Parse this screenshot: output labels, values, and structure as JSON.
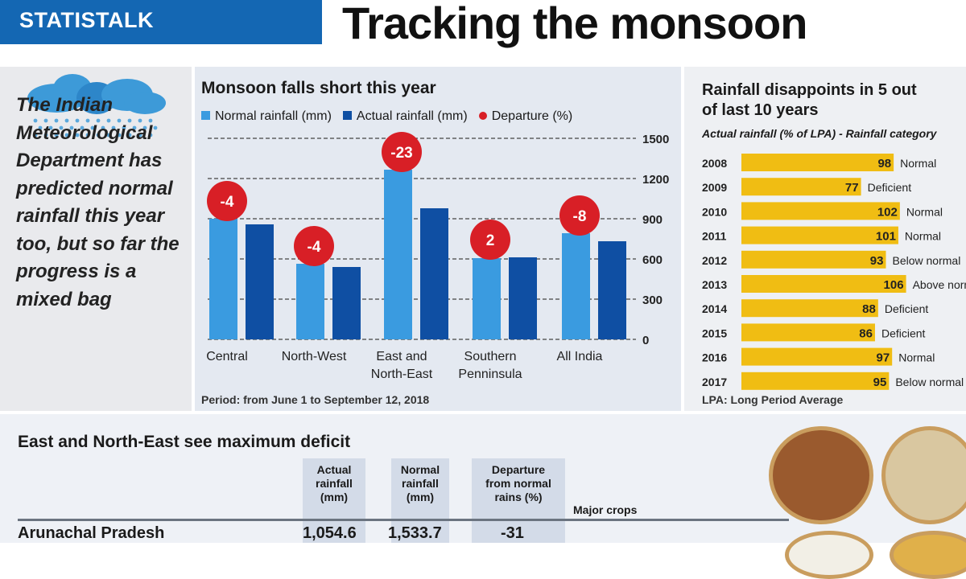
{
  "header": {
    "section": "STATISTALK",
    "title": "Tracking the monsoon"
  },
  "left_panel": {
    "icon": "rain-cloud-icon",
    "text": "The Indian Meteorological Department has predicted normal rainfall this year too, but so far the progress is a mixed bag"
  },
  "chart_data": [
    {
      "type": "bar",
      "title": "Monsoon falls short this year",
      "categories": [
        "Central",
        "North-West",
        "East and North-East",
        "Southern Penninsula",
        "All India"
      ],
      "category_lines": [
        [
          "Central"
        ],
        [
          "North-West"
        ],
        [
          "East and",
          "North-East"
        ],
        [
          "Southern",
          "Penninsula"
        ],
        [
          "All India"
        ]
      ],
      "series": [
        {
          "name": "Normal rainfall (mm)",
          "color": "#3a9be0",
          "values": [
            900,
            564,
            1266,
            606,
            792
          ]
        },
        {
          "name": "Actual rainfall (mm)",
          "color": "#0f4fa3",
          "values": [
            858,
            540,
            978,
            612,
            732
          ]
        }
      ],
      "departure": {
        "name": "Departure (%)",
        "color": "#d81f26",
        "values": [
          -4,
          -4,
          -23,
          2,
          -8
        ]
      },
      "ylim": [
        0,
        1500
      ],
      "yticks": [
        "0",
        "300",
        "600",
        "900",
        "1200",
        "1500"
      ],
      "yaxis_position": "right",
      "grid": true,
      "legend": "top",
      "note": "Period: from June 1 to September 12, 2018"
    },
    {
      "type": "bar",
      "orientation": "horizontal",
      "title": "Rainfall disappoints in 5 out of last 10 years",
      "subtitle": "Actual rainfall (% of LPA) - Rainfall category",
      "color": "#f0bd13",
      "categories": [
        "2008",
        "2009",
        "2010",
        "2011",
        "2012",
        "2013",
        "2014",
        "2015",
        "2016",
        "2017"
      ],
      "values": [
        98,
        77,
        102,
        101,
        93,
        106,
        88,
        86,
        97,
        95
      ],
      "labels": [
        "Normal",
        "Deficient",
        "Normal",
        "Normal",
        "Below normal",
        "Above normal",
        "Deficient",
        "Deficient",
        "Normal",
        "Below normal"
      ],
      "note": "LPA: Long Period Average"
    }
  ],
  "table": {
    "title": "East and North-East see maximum deficit",
    "headers": [
      "Actual rainfall (mm)",
      "Normal rainfall (mm)",
      "Departure from normal rains (%)",
      "Major crops"
    ],
    "rows": [
      {
        "state": "Arunachal Pradesh",
        "actual": "1,054.6",
        "normal": "1,533.7",
        "departure": "-31"
      }
    ]
  }
}
